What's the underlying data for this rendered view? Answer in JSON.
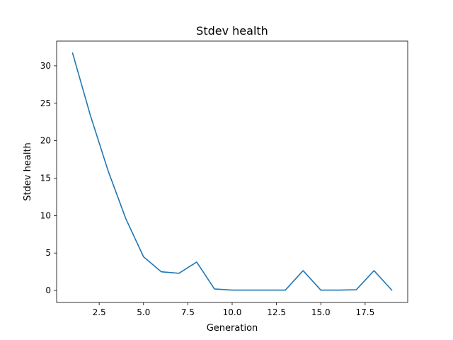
{
  "chart_data": {
    "type": "line",
    "title": "Stdev health",
    "xlabel": "Generation",
    "ylabel": "Stdev health",
    "xlim": [
      0.1,
      19.9
    ],
    "ylim": [
      -1.6,
      33.3
    ],
    "x_ticks": [
      2.5,
      5.0,
      7.5,
      10.0,
      12.5,
      15.0,
      17.5
    ],
    "x_tick_labels": [
      "2.5",
      "5.0",
      "7.5",
      "10.0",
      "12.5",
      "15.0",
      "17.5"
    ],
    "y_ticks": [
      0,
      5,
      10,
      15,
      20,
      25,
      30
    ],
    "y_tick_labels": [
      "0",
      "5",
      "10",
      "15",
      "20",
      "25",
      "30"
    ],
    "grid": false,
    "series": [
      {
        "color": "#1f77b4",
        "x": [
          1,
          2,
          3,
          4,
          5,
          6,
          7,
          8,
          9,
          10,
          11,
          12,
          13,
          14,
          15,
          16,
          17,
          18,
          19
        ],
        "values": [
          31.7,
          23.4,
          16.0,
          9.6,
          4.5,
          2.5,
          2.3,
          3.8,
          0.2,
          0.05,
          0.05,
          0.05,
          0.05,
          2.65,
          0.05,
          0.05,
          0.1,
          2.65,
          0.05
        ]
      }
    ]
  }
}
